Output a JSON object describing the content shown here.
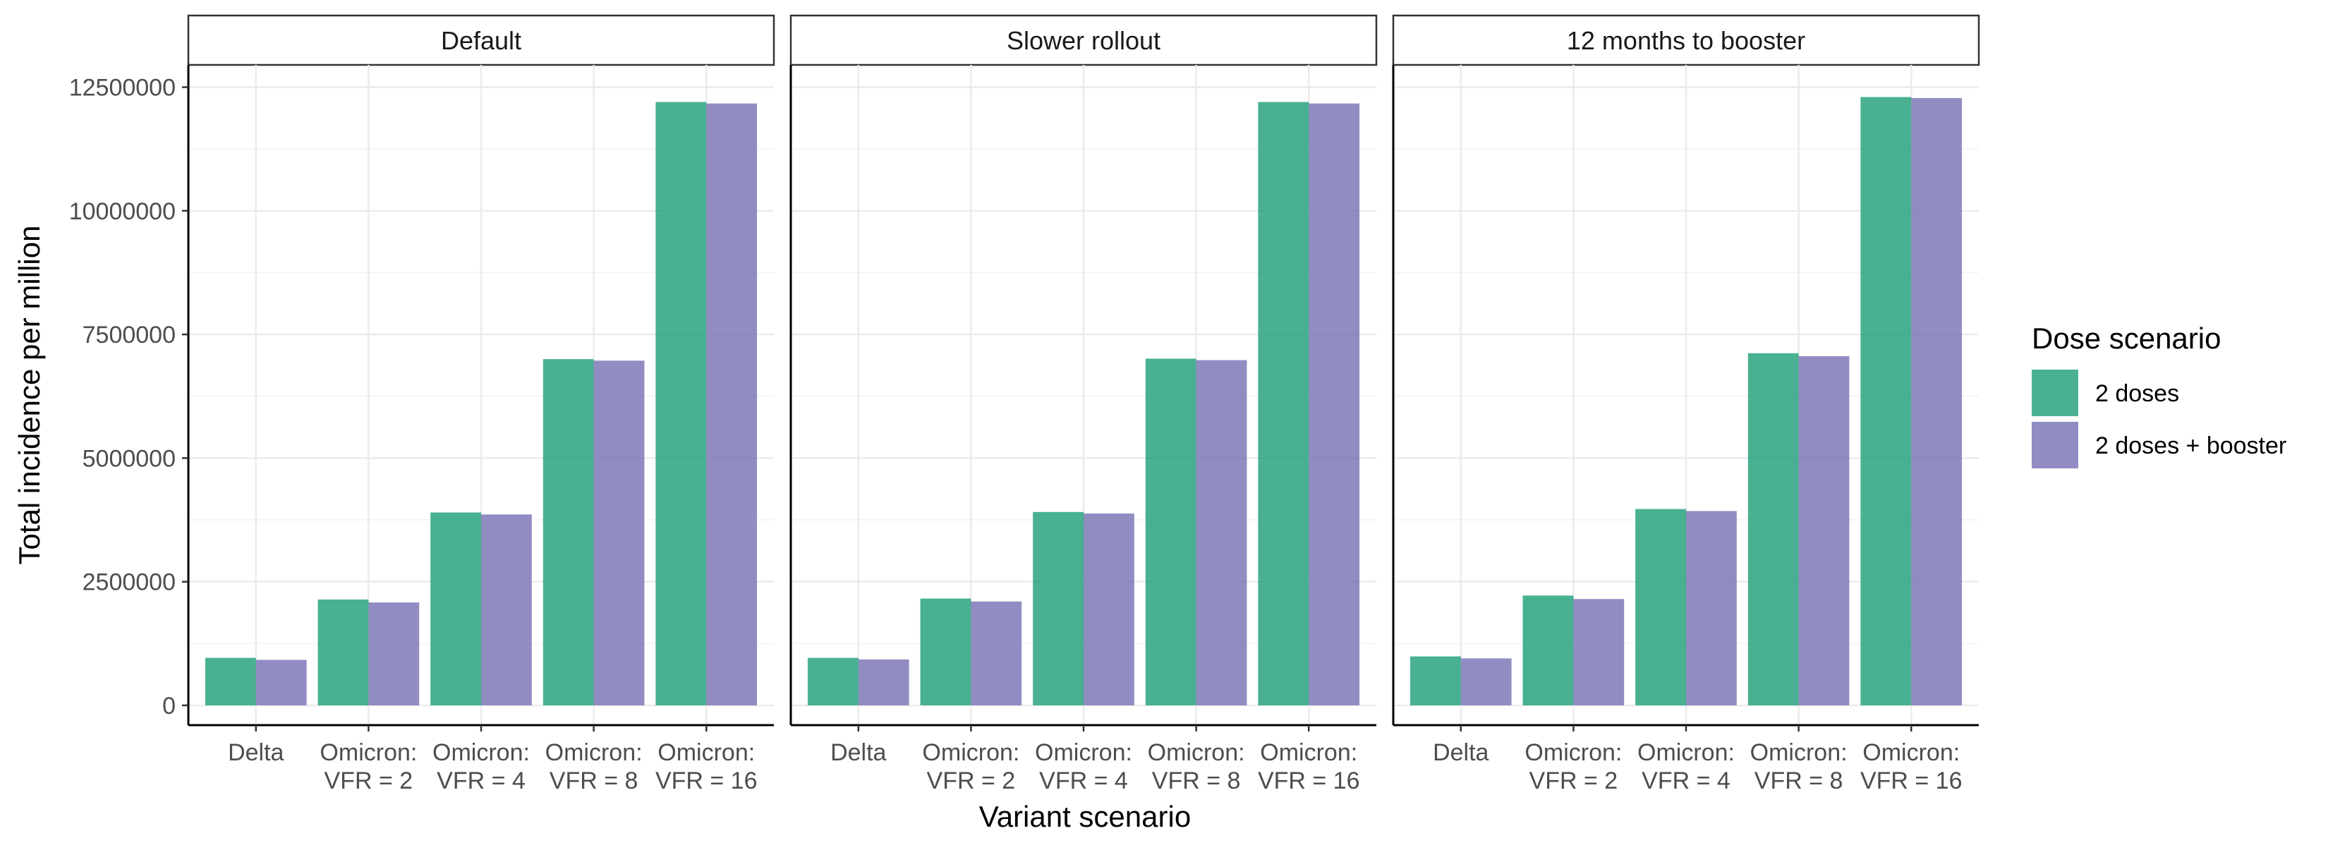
{
  "chart_data": {
    "type": "bar",
    "facets": [
      "Default",
      "Slower rollout",
      "12 months to booster"
    ],
    "categories": [
      [
        "Delta"
      ],
      [
        "Omicron:",
        "VFR = 2"
      ],
      [
        "Omicron:",
        "VFR = 4"
      ],
      [
        "Omicron:",
        "VFR = 8"
      ],
      [
        "Omicron:",
        "VFR = 16"
      ]
    ],
    "series": [
      {
        "name": "2 doses",
        "color": "#1b9e77",
        "values": [
          [
            960000,
            2140000,
            3900000,
            7000000,
            12200000
          ],
          [
            960000,
            2160000,
            3910000,
            7010000,
            12200000
          ],
          [
            990000,
            2220000,
            3970000,
            7120000,
            12300000
          ]
        ]
      },
      {
        "name": "2 doses + booster",
        "color": "#7570b3",
        "values": [
          [
            920000,
            2080000,
            3860000,
            6970000,
            12170000
          ],
          [
            930000,
            2100000,
            3880000,
            6980000,
            12170000
          ],
          [
            950000,
            2150000,
            3930000,
            7060000,
            12280000
          ]
        ]
      }
    ],
    "xlabel": "Variant scenario",
    "ylabel": "Total incidence per million",
    "yticks": [
      0,
      2500000,
      5000000,
      7500000,
      10000000,
      12500000
    ],
    "ytick_labels": [
      "0",
      "2500000",
      "5000000",
      "7500000",
      "10000000",
      "12500000"
    ],
    "ylim": [
      -400000,
      12950000
    ],
    "grid": true,
    "legend": {
      "title": "Dose scenario",
      "position": "right"
    }
  }
}
